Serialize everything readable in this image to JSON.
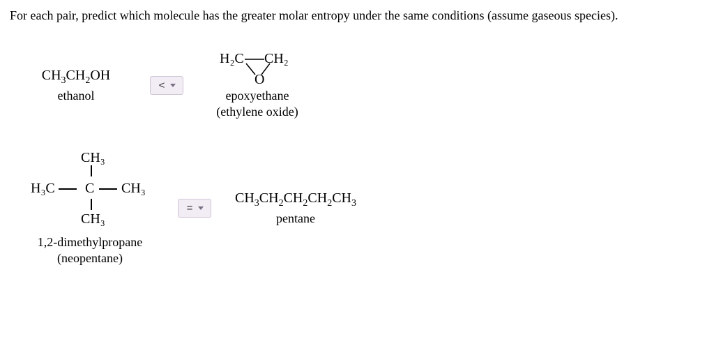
{
  "question": "For each pair, predict which molecule has the greater molar entropy under the same conditions (assume gaseous species).",
  "pair1": {
    "left": {
      "formula_html": "CH<sub>3</sub>CH<sub>2</sub>OH",
      "name": "ethanol"
    },
    "selector_value": "<",
    "right": {
      "h2c_left": "H₂C",
      "h2c_right": "CH₂",
      "oxygen": "O",
      "name_line1": "epoxyethane",
      "name_line2": "(ethylene oxide)"
    }
  },
  "pair2": {
    "left": {
      "ch3": "CH₃",
      "h3c": "H₃C",
      "c": "C",
      "name_line1": "1,2-dimethylpropane",
      "name_line2": "(neopentane)"
    },
    "selector_value": "=",
    "right": {
      "formula_html": "CH<sub>3</sub>CH<sub>2</sub>CH<sub>2</sub>CH<sub>2</sub>CH<sub>3</sub>",
      "name": "pentane"
    }
  },
  "colors": {
    "dropdown_bg": "#f2ecf5",
    "dropdown_border": "#d0c6d7",
    "text": "#000000",
    "bg": "#ffffff"
  }
}
